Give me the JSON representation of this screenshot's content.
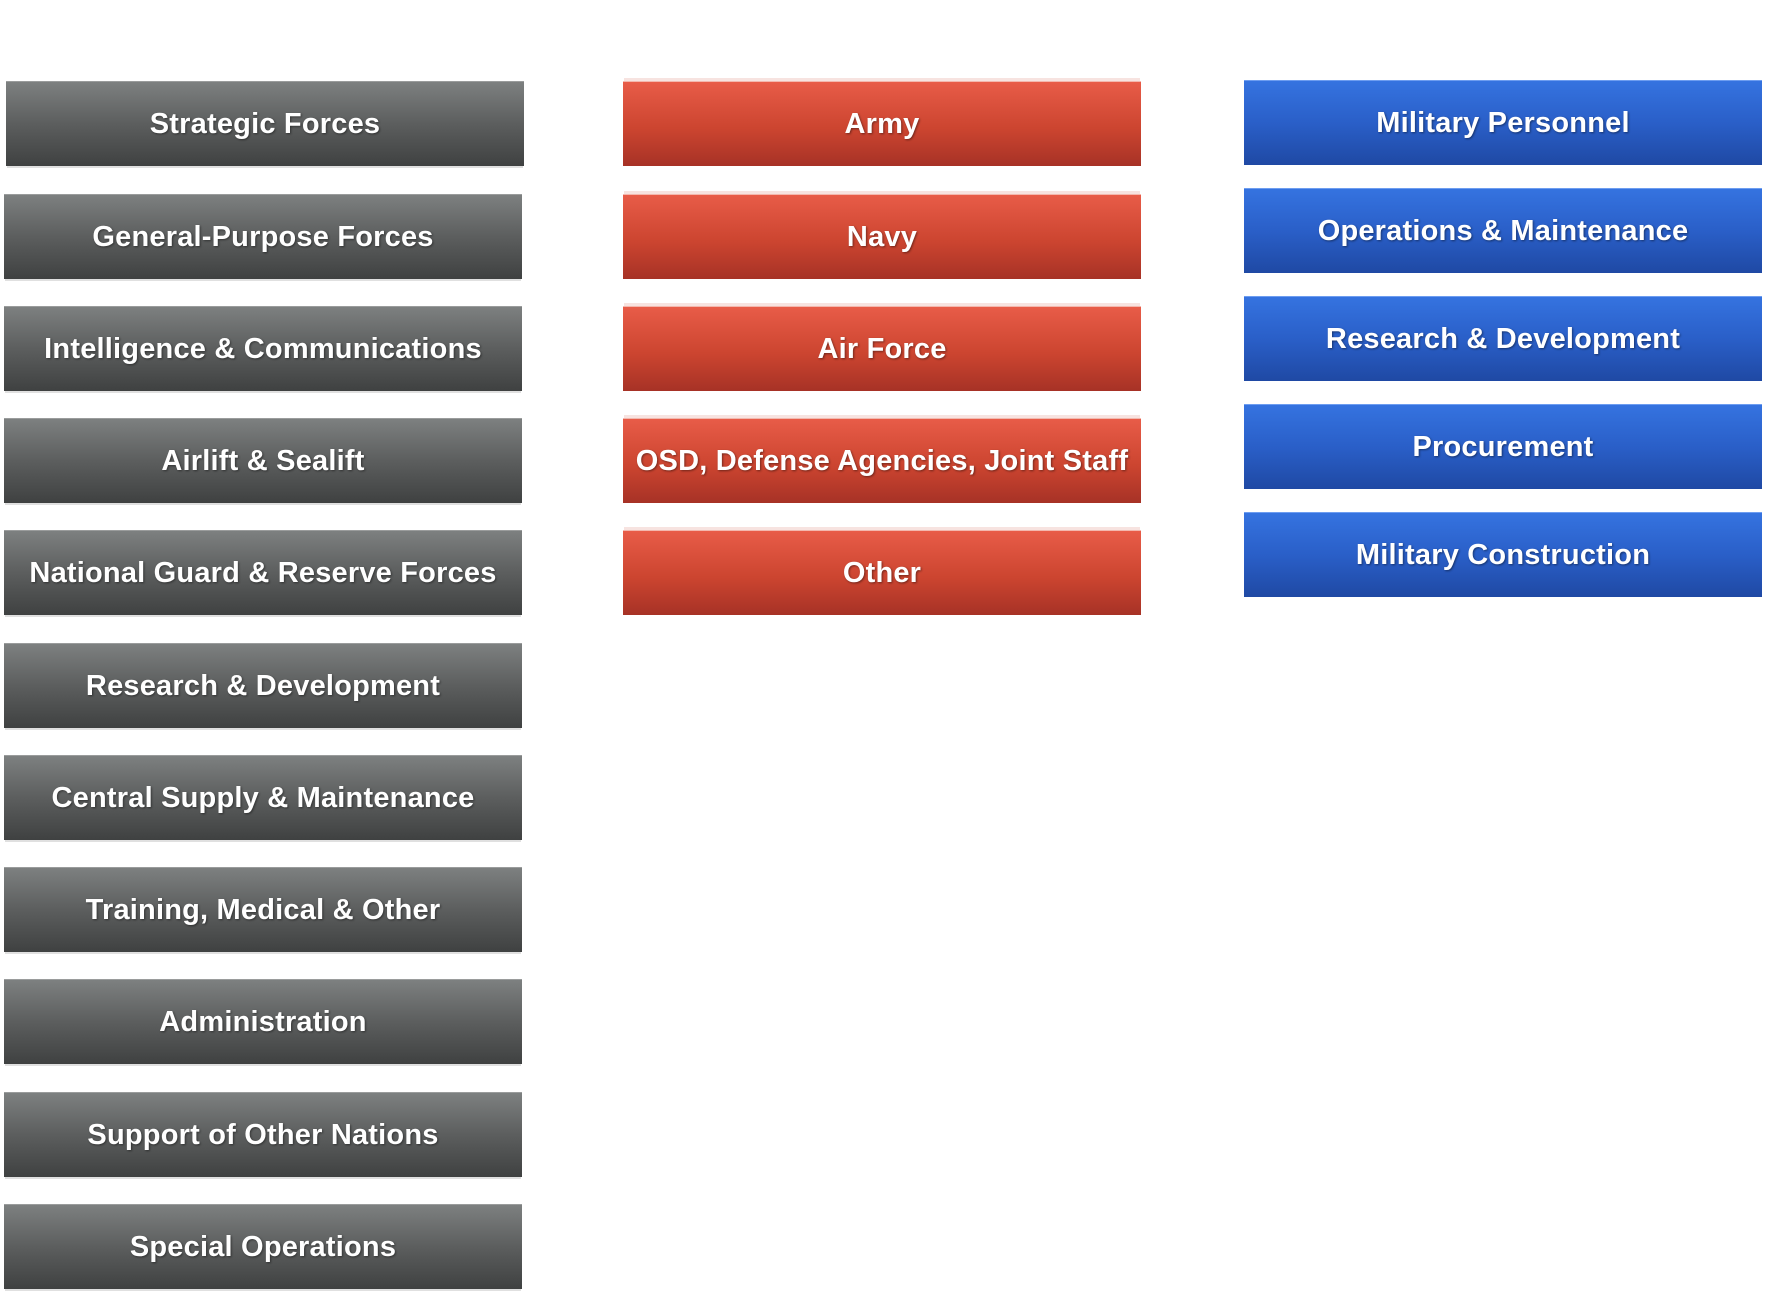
{
  "colors": {
    "programs": "#5c5e5e",
    "components": "#cc4530",
    "appropriations": "#2a5fc8"
  },
  "programs": [
    "Strategic Forces",
    "General-Purpose Forces",
    "Intelligence & Communications",
    "Airlift & Sealift",
    "National Guard & Reserve Forces",
    "Research & Development",
    "Central Supply & Maintenance",
    "Training, Medical & Other",
    "Administration",
    "Support of Other Nations",
    "Special Operations"
  ],
  "components": [
    "Army",
    "Navy",
    "Air Force",
    "OSD, Defense Agencies, Joint Staff",
    "Other"
  ],
  "appropriations": [
    "Military Personnel",
    "Operations & Maintenance",
    "Research & Development",
    "Procurement",
    "Military Construction"
  ]
}
